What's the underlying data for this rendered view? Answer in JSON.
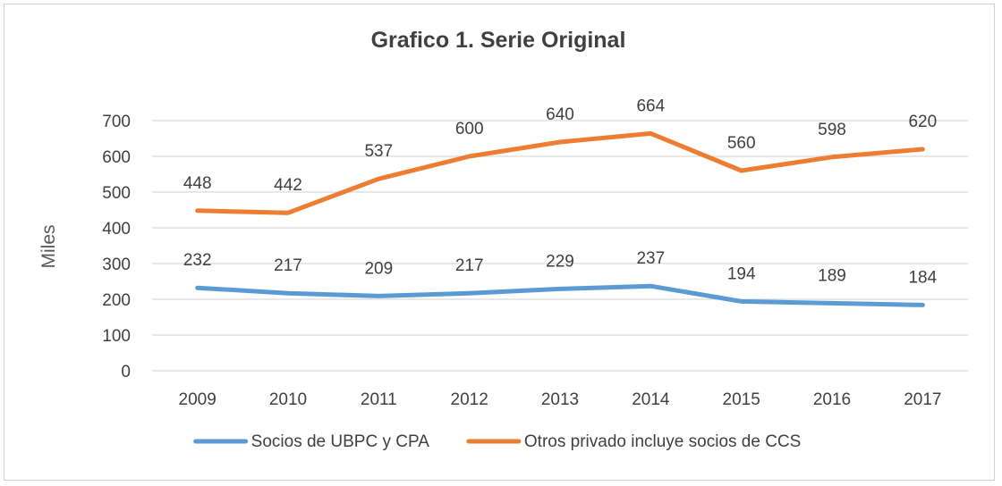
{
  "chart_data": {
    "type": "line",
    "title": "Grafico 1. Serie Original",
    "ylabel": "Miles",
    "xlabel": "",
    "ylim": [
      0,
      700
    ],
    "yticks": [
      0,
      100,
      200,
      300,
      400,
      500,
      600,
      700
    ],
    "grid": true,
    "legend_position": "bottom",
    "categories": [
      "2009",
      "2010",
      "2011",
      "2012",
      "2013",
      "2014",
      "2015",
      "2016",
      "2017"
    ],
    "series": [
      {
        "name": "Socios de UBPC y CPA",
        "color": "#5b9bd5",
        "values": [
          232,
          217,
          209,
          217,
          229,
          237,
          194,
          189,
          184
        ]
      },
      {
        "name": "Otros privado  incluye socios de CCS",
        "color": "#ed7d31",
        "values": [
          448,
          442,
          537,
          600,
          640,
          664,
          560,
          598,
          620
        ]
      }
    ]
  }
}
